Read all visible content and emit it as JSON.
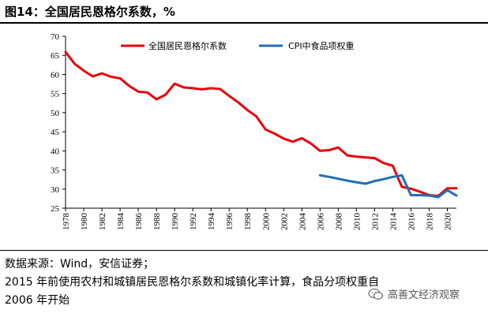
{
  "figure": {
    "title": "图14：全国居民恩格尔系数，%"
  },
  "chart_data": {
    "type": "line",
    "title": "图14：全国居民恩格尔系数，%",
    "xlabel": "",
    "ylabel": "",
    "xlim": [
      1978,
      2021
    ],
    "ylim": [
      25,
      70
    ],
    "yticks": [
      25,
      30,
      35,
      40,
      45,
      50,
      55,
      60,
      65,
      70
    ],
    "xticks": [
      1978,
      1980,
      1982,
      1984,
      1986,
      1988,
      1990,
      1992,
      1994,
      1996,
      1998,
      2000,
      2002,
      2004,
      2006,
      2008,
      2010,
      2012,
      2014,
      2016,
      2018,
      2020
    ],
    "legend_position": "top",
    "series": [
      {
        "name": "全国居民恩格尔系数",
        "color": "#e8000b",
        "x": [
          1978,
          1979,
          1980,
          1981,
          1982,
          1983,
          1984,
          1985,
          1986,
          1987,
          1988,
          1989,
          1990,
          1991,
          1992,
          1993,
          1994,
          1995,
          1996,
          1997,
          1998,
          1999,
          2000,
          2001,
          2002,
          2003,
          2004,
          2005,
          2006,
          2007,
          2008,
          2009,
          2010,
          2011,
          2012,
          2013,
          2014,
          2015,
          2016,
          2017,
          2018,
          2019,
          2020,
          2021
        ],
        "values": [
          65.9,
          62.8,
          61.0,
          59.5,
          60.3,
          59.4,
          59.0,
          57.0,
          55.5,
          55.3,
          53.5,
          54.7,
          57.6,
          56.6,
          56.4,
          56.1,
          56.4,
          56.2,
          54.4,
          52.7,
          50.7,
          49.0,
          45.6,
          44.5,
          43.2,
          42.4,
          43.3,
          41.9,
          40.0,
          40.2,
          40.9,
          38.8,
          38.5,
          38.3,
          38.1,
          36.8,
          36.1,
          30.6,
          30.1,
          29.3,
          28.4,
          28.2,
          30.2,
          30.2
        ]
      },
      {
        "name": "CPI中食品项权重",
        "color": "#1f6fb5",
        "x": [
          2006,
          2007,
          2008,
          2009,
          2010,
          2011,
          2012,
          2013,
          2014,
          2015,
          2016,
          2017,
          2018,
          2019,
          2020,
          2021
        ],
        "values": [
          33.6,
          33.2,
          32.7,
          32.2,
          31.8,
          31.4,
          32.1,
          32.6,
          33.2,
          33.6,
          28.4,
          28.4,
          28.3,
          27.9,
          29.7,
          28.3
        ]
      }
    ]
  },
  "source": {
    "line1": "数据来源：Wind，安信证券；",
    "line2": "2015 年前使用农村和城镇居民恩格尔系数和城镇化率计算，食品分项权重自",
    "line3": "2006 年开始"
  },
  "watermark": {
    "text": "高善文经济观察"
  }
}
